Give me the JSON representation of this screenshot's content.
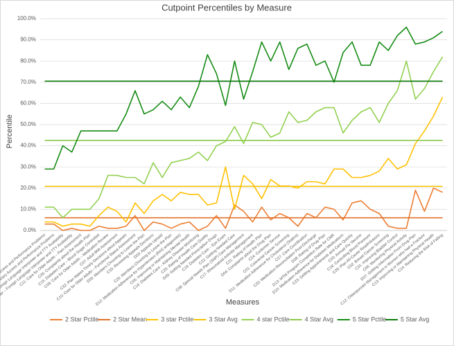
{
  "chart_data": {
    "type": "line",
    "title": "Cutpoint Percentiles by Measure",
    "x_label": "Measures",
    "y_label": "Percentile",
    "categories": [
      "C30: Beneficiary Access and Performance Problems",
      "D06: Beneficiary Access and Performance Problems",
      "C34: Call Center – Foreign Language Interpreter and TTY Availability",
      "D01: Call Center – Foreign Language Interpreter and TTY Availability",
      "C11: Care for Older Adults – Pain Assessment",
      "C26: Complaints about the Health Plan",
      "C15: Diabetes Care – Blood Sugar Controlled",
      "C09: Care for Older Adults – Medication Review",
      "C07: Adult BMI Assessment",
      "C32: Plan Makes Timely Decisions about Appeals",
      "C10: Care for Older Adults – Functional Status Assessment",
      "D05: Members Choosing to Leave the Plan",
      "C33: Reviewing Appeals Decisions",
      "D03: Appeals Upheld",
      "C25: Members Choosing to Leave the Plan",
      "D12: Medication Adherence for Hypertension (RAS antagonists)",
      "C05: Improving or Maintaining Mental Health",
      "C16: Diabetes Care – Kidney Disease Monitoring",
      "C25: Rating of Health Care Quality",
      "D09: Getting Needed Prescription Drugs",
      "C19: Diabetes Care – Eye Exam",
      "C22: Getting Needed Care",
      "C08: Special Needs Plan (SNP) Care Management",
      "C17: Rheumatoid Arthritis Management",
      "C21: Rating of Health Plan",
      "D04: Complaints about the Drug Plan",
      "C24: Customer Service",
      "C01: Colorectal Cancer Screening",
      "D11: Medication Adherence for Cholesterol (Statins)",
      "C27: Care Coordination",
      "C20: Medication Reconciliation Post-Discharge",
      "D08: Rating of Drug Plan",
      "D13: MTM Program Completion Rate for CMR",
      "D10: Medication Adherence for Diabetes Medications",
      "C23: Getting Appointments and Care Quickly",
      "C03: Annual Flu Vaccine",
      "C18: Controlling Blood Pressure",
      "C29: Plan All-Cause Readmissions",
      "C02: Breast Cancer Screening",
      "C31: Improving Bladder Control",
      "C06: Monitoring Physical Activity",
      "D07: Getting Information From Drug Plan",
      "C12: Osteoporosis Management in Women who had a Fracture",
      "C13: Improving or Maintaining Physical Health",
      "C14: Reducing the Risk of Falling"
    ],
    "series": [
      {
        "name": "2 Star Pctile",
        "color": "#ed7d31",
        "values": [
          3,
          3,
          0,
          1,
          0,
          0,
          2,
          1,
          1,
          2,
          7,
          0,
          4,
          3,
          1,
          3,
          4,
          0,
          2,
          7,
          1,
          12,
          9,
          4,
          11,
          5,
          8,
          6,
          2,
          8,
          6,
          11,
          10,
          5,
          13,
          14,
          10,
          8,
          2,
          1,
          1,
          19,
          9,
          20,
          18
        ]
      },
      {
        "name": "2 Star Mean",
        "color": "#e0702a",
        "values": [
          6,
          6,
          6,
          6,
          6,
          6,
          6,
          6,
          6,
          6,
          6,
          6,
          6,
          6,
          6,
          6,
          6,
          6,
          6,
          6,
          6,
          6,
          6,
          6,
          6,
          6,
          6,
          6,
          6,
          6,
          6,
          6,
          6,
          6,
          6,
          6,
          6,
          6,
          6,
          6,
          6,
          6,
          6,
          6,
          6
        ]
      },
      {
        "name": "3 star Pctile",
        "color": "#ffc000",
        "values": [
          4,
          4,
          2,
          3,
          3,
          2,
          7,
          11,
          9,
          4,
          13,
          8,
          14,
          17,
          14,
          18,
          17,
          17,
          12,
          13,
          30,
          10,
          26,
          22,
          15,
          24,
          21,
          21,
          20,
          23,
          23,
          22,
          29,
          29,
          25,
          25,
          26,
          28,
          34,
          29,
          31,
          41,
          47,
          54,
          63
        ]
      },
      {
        "name": "3 Star Avg",
        "color": "#f5c000",
        "values": [
          20.8,
          20.8,
          20.8,
          20.8,
          20.8,
          20.8,
          20.8,
          20.8,
          20.8,
          20.8,
          20.8,
          20.8,
          20.8,
          20.8,
          20.8,
          20.8,
          20.8,
          20.8,
          20.8,
          20.8,
          20.8,
          20.8,
          20.8,
          20.8,
          20.8,
          20.8,
          20.8,
          20.8,
          20.8,
          20.8,
          20.8,
          20.8,
          20.8,
          20.8,
          20.8,
          20.8,
          20.8,
          20.8,
          20.8,
          20.8,
          20.8,
          20.8,
          20.8,
          20.8,
          20.8
        ]
      },
      {
        "name": "4 star Pctile",
        "color": "#92d050",
        "values": [
          11,
          11,
          6,
          10,
          10,
          10,
          15,
          26,
          26,
          25,
          25,
          22,
          32,
          25,
          32,
          33,
          34,
          37,
          33,
          40,
          42,
          49,
          41,
          51,
          50,
          44,
          46,
          56,
          51,
          52,
          56,
          58,
          58,
          46,
          52,
          56,
          58,
          51,
          60,
          66,
          80,
          62,
          67,
          75,
          82
        ]
      },
      {
        "name": "4 Star Avg",
        "color": "#8cc84b",
        "values": [
          42.5,
          42.5,
          42.5,
          42.5,
          42.5,
          42.5,
          42.5,
          42.5,
          42.5,
          42.5,
          42.5,
          42.5,
          42.5,
          42.5,
          42.5,
          42.5,
          42.5,
          42.5,
          42.5,
          42.5,
          42.5,
          42.5,
          42.5,
          42.5,
          42.5,
          42.5,
          42.5,
          42.5,
          42.5,
          42.5,
          42.5,
          42.5,
          42.5,
          42.5,
          42.5,
          42.5,
          42.5,
          42.5,
          42.5,
          42.5,
          42.5,
          42.5,
          42.5,
          42.5,
          42.5
        ]
      },
      {
        "name": "5 Star Pctile",
        "color": "#138a13",
        "values": [
          29,
          29,
          40,
          37,
          47,
          47,
          47,
          47,
          47,
          55,
          66,
          55,
          57,
          61,
          57,
          63,
          58,
          68,
          83,
          74,
          59,
          80,
          62,
          75,
          89,
          80,
          89,
          76,
          86,
          88,
          78,
          80,
          70,
          84,
          89,
          78,
          78,
          89,
          85,
          92,
          96,
          88,
          89,
          91,
          94
        ]
      },
      {
        "name": "5 Star Avg",
        "color": "#0b7a0b",
        "values": [
          70.5,
          70.5,
          70.5,
          70.5,
          70.5,
          70.5,
          70.5,
          70.5,
          70.5,
          70.5,
          70.5,
          70.5,
          70.5,
          70.5,
          70.5,
          70.5,
          70.5,
          70.5,
          70.5,
          70.5,
          70.5,
          70.5,
          70.5,
          70.5,
          70.5,
          70.5,
          70.5,
          70.5,
          70.5,
          70.5,
          70.5,
          70.5,
          70.5,
          70.5,
          70.5,
          70.5,
          70.5,
          70.5,
          70.5,
          70.5,
          70.5,
          70.5,
          70.5,
          70.5,
          70.5
        ]
      }
    ],
    "ylim": [
      0,
      100
    ],
    "yticks": [
      {
        "value": 0,
        "label": "0.0%"
      },
      {
        "value": 10,
        "label": "10.0%"
      },
      {
        "value": 20,
        "label": "20.0%"
      },
      {
        "value": 30,
        "label": "30.0%"
      },
      {
        "value": 40,
        "label": "40.0%"
      },
      {
        "value": 50,
        "label": "50.0%"
      },
      {
        "value": 60,
        "label": "60.0%"
      },
      {
        "value": 70,
        "label": "70.0%"
      },
      {
        "value": 80,
        "label": "80.0%"
      },
      {
        "value": 90,
        "label": "90.0%"
      },
      {
        "value": 100,
        "label": "100.0%"
      }
    ],
    "grid": true,
    "legend": "bottom"
  }
}
